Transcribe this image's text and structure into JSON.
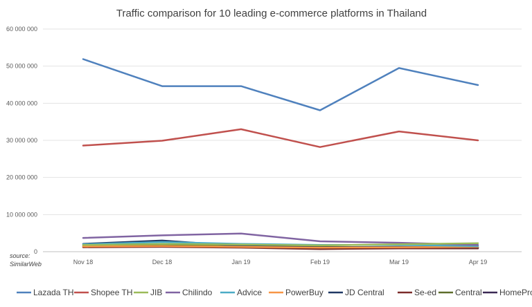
{
  "chart_data": {
    "type": "line",
    "title": "Traffic comparison for 10 leading e-commerce platforms in Thailand",
    "xlabel": "",
    "ylabel": "",
    "source_line1": "source:",
    "source_line2": "SimilarWeb",
    "categories": [
      "Nov 18",
      "Dec 18",
      "Jan 19",
      "Feb 19",
      "Mar 19",
      "Apr 19"
    ],
    "ylim": [
      0,
      60000000
    ],
    "yticks": [
      0,
      10000000,
      20000000,
      30000000,
      40000000,
      50000000,
      60000000
    ],
    "ytick_labels": [
      "0",
      "10 000 000",
      "20 000 000",
      "30 000 000",
      "40 000 000",
      "50 000 000",
      "60 000 000"
    ],
    "grid": true,
    "legend_position": "bottom",
    "series": [
      {
        "name": "Lazada TH",
        "color": "#4f81bd",
        "values": [
          51900000,
          44600000,
          44600000,
          38100000,
          49500000,
          44900000
        ]
      },
      {
        "name": "Shopee TH",
        "color": "#c0504d",
        "values": [
          28600000,
          29900000,
          33000000,
          28200000,
          32400000,
          30000000
        ]
      },
      {
        "name": "JIB",
        "color": "#9bbb59",
        "values": [
          1800000,
          2100000,
          1900000,
          1700000,
          2000000,
          2300000
        ]
      },
      {
        "name": "Chilindo",
        "color": "#8064a2",
        "values": [
          3700000,
          4400000,
          4900000,
          2800000,
          2400000,
          1800000
        ]
      },
      {
        "name": "Advice",
        "color": "#4bacc6",
        "values": [
          2000000,
          2600000,
          2100000,
          1800000,
          1800000,
          1500000
        ]
      },
      {
        "name": "PowerBuy",
        "color": "#f79646",
        "values": [
          1400000,
          1500000,
          1300000,
          1100000,
          1200000,
          1300000
        ]
      },
      {
        "name": "JD Central",
        "color": "#1f3864",
        "values": [
          2100000,
          3000000,
          1500000,
          1200000,
          1300000,
          1200000
        ]
      },
      {
        "name": "Se-ed",
        "color": "#7b2c2a",
        "values": [
          1200000,
          1300000,
          1100000,
          700000,
          900000,
          900000
        ]
      },
      {
        "name": "Central",
        "color": "#5e6d2b",
        "values": [
          1600000,
          1800000,
          1400000,
          1300000,
          1200000,
          1100000
        ]
      },
      {
        "name": "HomePro",
        "color": "#3b2954",
        "values": [
          1300000,
          1400000,
          1200000,
          1000000,
          1100000,
          1000000
        ]
      }
    ]
  }
}
